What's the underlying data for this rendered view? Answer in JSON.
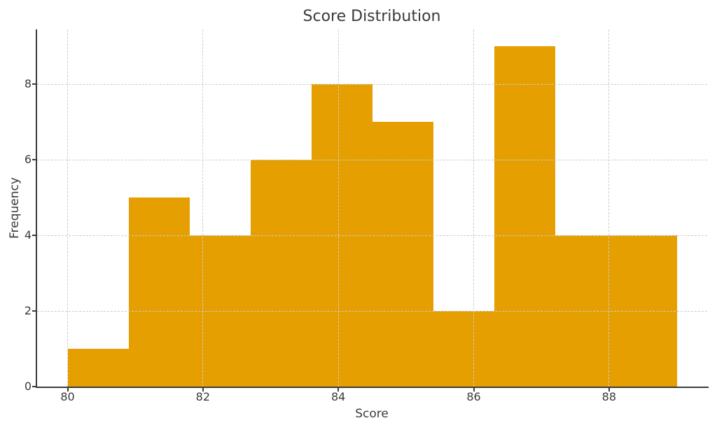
{
  "chart_data": {
    "type": "bar",
    "subtype": "histogram",
    "title": "Score Distribution",
    "xlabel": "Score",
    "ylabel": "Frequency",
    "bin_edges": [
      80.0,
      80.9,
      81.8,
      82.7,
      83.6,
      84.5,
      85.4,
      86.3,
      87.2,
      88.1,
      89.0
    ],
    "counts": [
      1,
      5,
      4,
      6,
      8,
      7,
      2,
      9,
      4,
      4
    ],
    "x_ticks": [
      80,
      82,
      84,
      86,
      88
    ],
    "y_ticks": [
      0,
      2,
      4,
      6,
      8
    ],
    "xlim": [
      79.55,
      89.45
    ],
    "ylim": [
      0,
      9.45
    ],
    "grid": true,
    "legend": "none",
    "colors": {
      "bar_fill": "#E69F00",
      "grid_line": "#cccccc",
      "axis_spine": "#3a3a3a",
      "text": "#3a3a3a",
      "background": "#ffffff"
    }
  }
}
